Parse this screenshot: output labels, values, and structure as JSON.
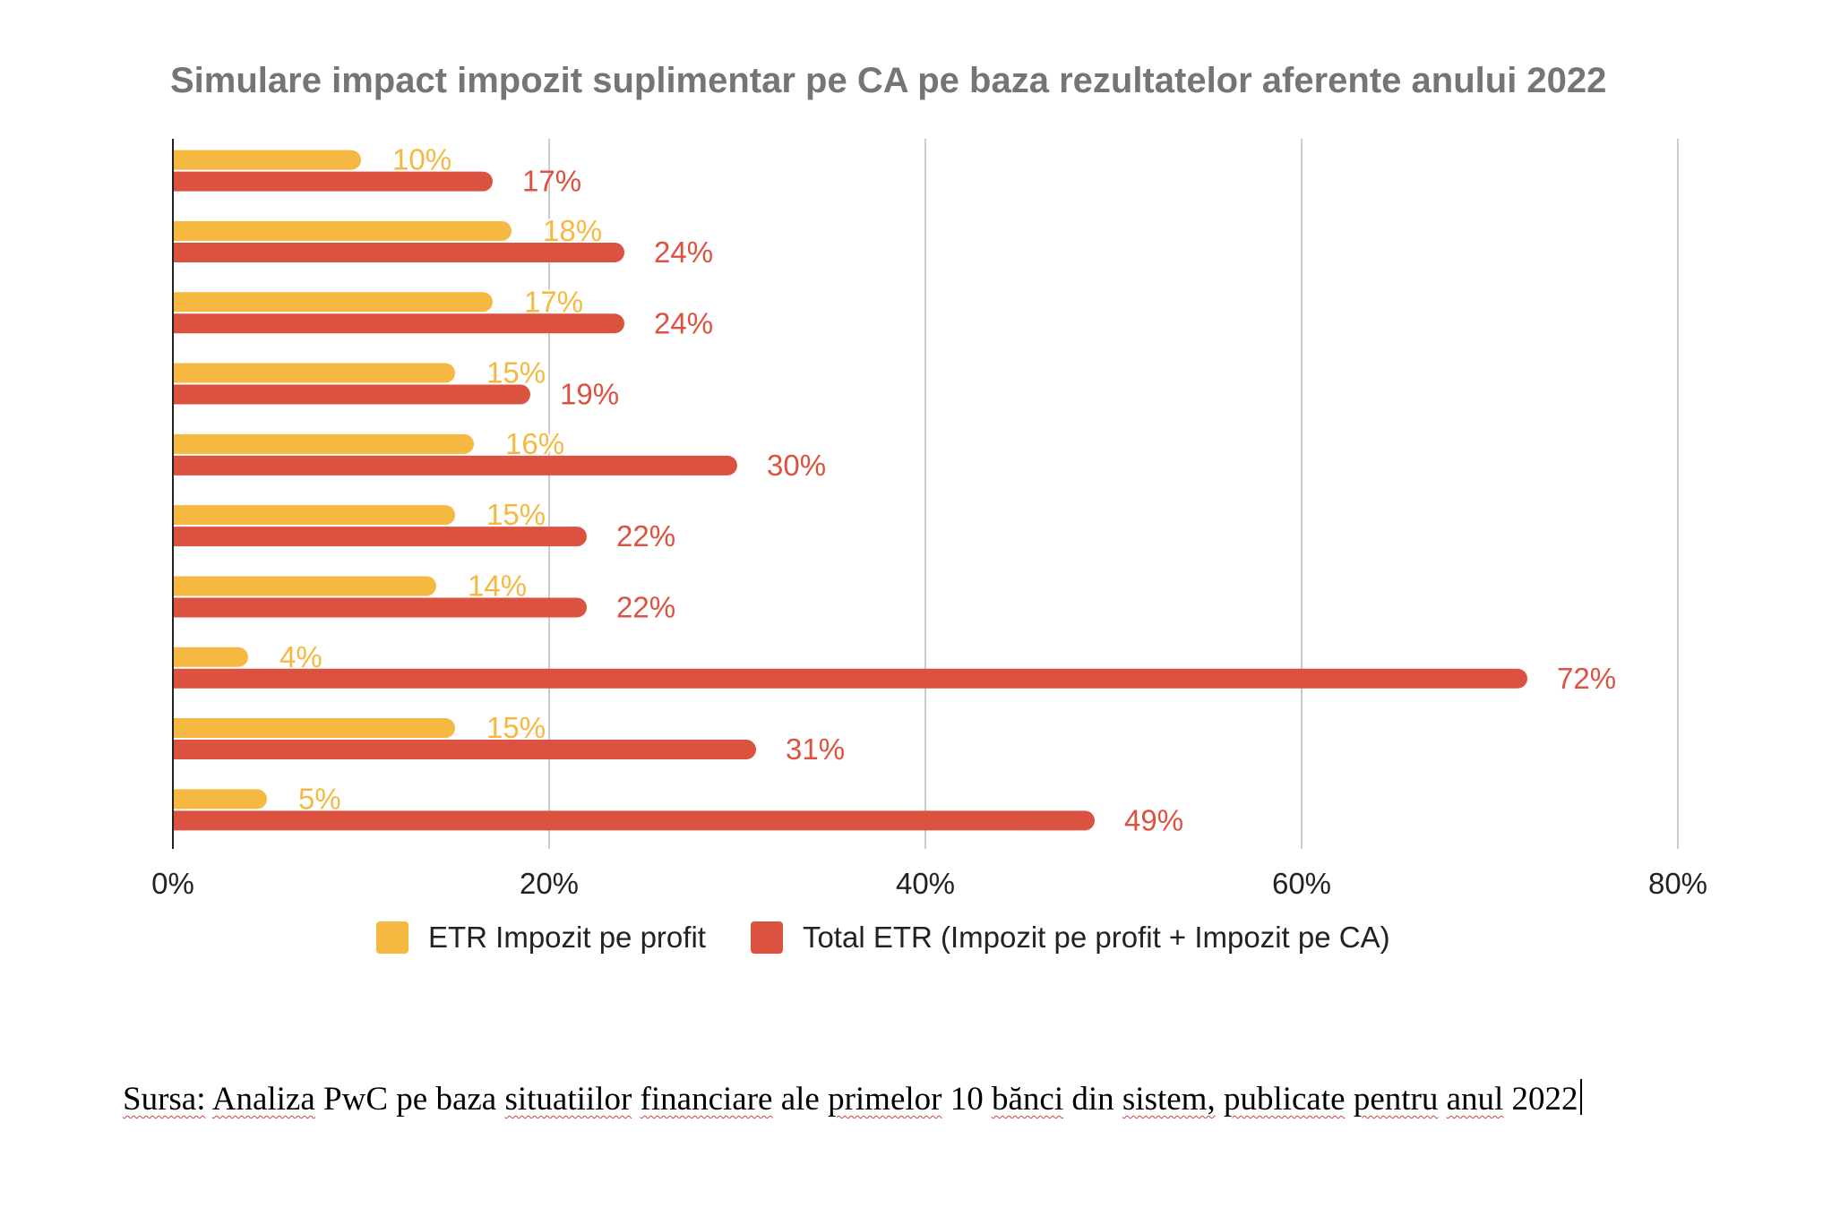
{
  "chart_data": {
    "type": "bar",
    "orientation": "horizontal",
    "title": "Simulare impact impozit suplimentar pe CA pe baza rezultatelor aferente anului 2022",
    "xlim": [
      0,
      80
    ],
    "x_ticks": [
      "0%",
      "20%",
      "40%",
      "60%",
      "80%"
    ],
    "grid": true,
    "legend_position": "bottom",
    "series": [
      {
        "name": "ETR Impozit pe profit",
        "color": "#f5b942",
        "values": [
          10,
          18,
          17,
          15,
          16,
          15,
          14,
          4,
          15,
          5
        ],
        "labels": [
          "10%",
          "18%",
          "17%",
          "15%",
          "16%",
          "15%",
          "14%",
          "4%",
          "15%",
          "5%"
        ]
      },
      {
        "name": "Total ETR (Impozit pe profit + Impozit pe CA)",
        "color": "#dc5240",
        "values": [
          17,
          24,
          24,
          19,
          30,
          22,
          22,
          72,
          31,
          49
        ],
        "labels": [
          "17%",
          "24%",
          "24%",
          "19%",
          "30%",
          "22%",
          "22%",
          "72%",
          "31%",
          "49%"
        ]
      }
    ]
  },
  "source": {
    "prefix": "Sursa:",
    "words": [
      "Analiza",
      "PwC",
      "pe",
      "baza",
      "situatiilor",
      "financiare",
      "ale",
      "primelor",
      "10",
      "bănci",
      "din",
      "sistem,",
      "publicate",
      "pentru",
      "anul",
      "2022"
    ],
    "underlined": [
      true,
      false,
      false,
      false,
      true,
      true,
      false,
      true,
      false,
      true,
      false,
      true,
      true,
      true,
      true,
      false
    ]
  }
}
